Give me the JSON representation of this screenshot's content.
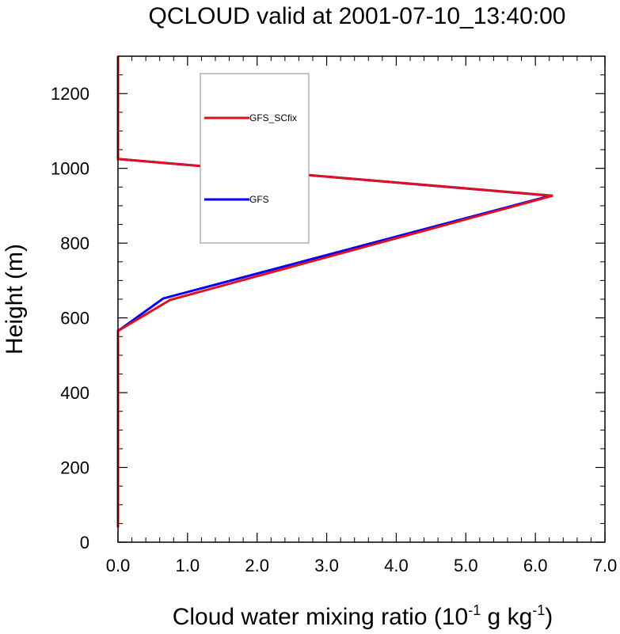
{
  "chart_data": {
    "type": "line",
    "title": "QCLOUD valid at 2001-07-10_13:40:00",
    "xlabel": {
      "main": "Cloud water mixing ratio (10",
      "exp1": "-1",
      "mid": " g kg",
      "exp2": "-1",
      "end": ")"
    },
    "ylabel": "Height (m)",
    "xlim": [
      0,
      7
    ],
    "ylim": [
      0,
      1300
    ],
    "xticks": [
      "0.0",
      "1.0",
      "2.0",
      "3.0",
      "4.0",
      "5.0",
      "6.0",
      "7.0"
    ],
    "xtick_values": [
      0,
      1,
      2,
      3,
      4,
      5,
      6,
      7
    ],
    "yticks": [
      "0",
      "200",
      "400",
      "600",
      "800",
      "1000",
      "1200"
    ],
    "ytick_values": [
      0,
      200,
      400,
      600,
      800,
      1000,
      1200
    ],
    "grid": false,
    "legend_position": "top-left",
    "series": [
      {
        "name": "GFS",
        "color": "#0000ff",
        "points": [
          [
            0,
            40
          ],
          [
            0,
            565
          ],
          [
            0.65,
            652
          ],
          [
            6.22,
            927
          ],
          [
            0,
            1025
          ],
          [
            0,
            1300
          ]
        ]
      },
      {
        "name": "GFS_SCfix",
        "color": "#e01020",
        "points": [
          [
            0,
            40
          ],
          [
            0,
            565
          ],
          [
            0.75,
            648
          ],
          [
            6.25,
            927
          ],
          [
            0,
            1025
          ],
          [
            0,
            1300
          ]
        ]
      }
    ],
    "legend": [
      {
        "name": "GFS_SCfix",
        "color": "#e01020"
      },
      {
        "name": "GFS",
        "color": "#0000ff"
      }
    ]
  }
}
